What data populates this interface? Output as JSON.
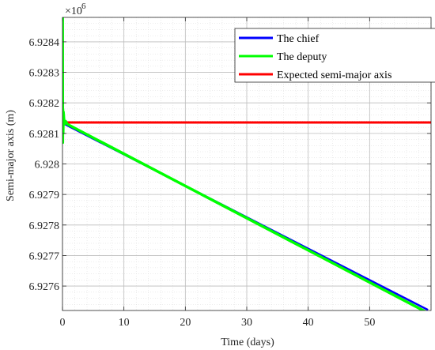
{
  "chart_data": {
    "type": "line",
    "title": "",
    "xlabel": "Time (days)",
    "ylabel": "Semi-major axis (m)",
    "y_multiplier_base": "×10",
    "y_multiplier_exp": "6",
    "xlim": [
      0,
      60
    ],
    "ylim": [
      6.92752,
      6.92848
    ],
    "x_ticks": [
      0,
      10,
      20,
      30,
      40,
      50
    ],
    "x_tick_labels": [
      "0",
      "10",
      "20",
      "30",
      "40",
      "50"
    ],
    "y_ticks": [
      6.9276,
      6.9277,
      6.9278,
      6.9279,
      6.928,
      6.9281,
      6.9282,
      6.9283,
      6.9284
    ],
    "y_tick_labels": [
      "6.9276",
      "6.9277",
      "6.9278",
      "6.9279",
      "6.928",
      "6.9281",
      "6.9282",
      "6.9283",
      "6.9284"
    ],
    "grid": true,
    "minor_grid": true,
    "legend_position": "top-right",
    "series": [
      {
        "name": "The chief",
        "color": "#0000ff",
        "x": [
          0,
          59.5
        ],
        "y": [
          6.928134,
          6.927522
        ]
      },
      {
        "name": "The deputy",
        "color": "#00ff00",
        "x": [
          0,
          0.02,
          0.04,
          0.06,
          0.1,
          0.15,
          0.3,
          0.5,
          0.8,
          59.5
        ],
        "y": [
          6.92848,
          6.92848,
          6.92807,
          6.92818,
          6.9281,
          6.92817,
          6.92813,
          6.92814,
          6.92813,
          6.927512
        ]
      },
      {
        "name": "Expected semi-major axis",
        "color": "#ff0000",
        "x": [
          0,
          60
        ],
        "y": [
          6.928136,
          6.928136
        ]
      }
    ]
  }
}
